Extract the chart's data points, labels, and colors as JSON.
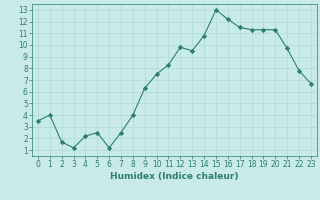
{
  "x": [
    0,
    1,
    2,
    3,
    4,
    5,
    6,
    7,
    8,
    9,
    10,
    11,
    12,
    13,
    14,
    15,
    16,
    17,
    18,
    19,
    20,
    21,
    22,
    23
  ],
  "y": [
    3.5,
    4.0,
    1.7,
    1.2,
    2.2,
    2.5,
    1.2,
    2.5,
    4.0,
    6.3,
    7.5,
    8.3,
    9.8,
    9.5,
    10.8,
    13.0,
    12.2,
    11.5,
    11.3,
    11.3,
    11.3,
    9.7,
    7.8,
    6.7
  ],
  "line_color": "#2e7d6e",
  "marker": "D",
  "marker_size": 2.2,
  "bg_color": "#c8ebe8",
  "grid_color": "#afd9d4",
  "xlabel": "Humidex (Indice chaleur)",
  "xlim": [
    -0.5,
    23.5
  ],
  "ylim": [
    0.5,
    13.5
  ],
  "yticks": [
    1,
    2,
    3,
    4,
    5,
    6,
    7,
    8,
    9,
    10,
    11,
    12,
    13
  ],
  "xticks": [
    0,
    1,
    2,
    3,
    4,
    5,
    6,
    7,
    8,
    9,
    10,
    11,
    12,
    13,
    14,
    15,
    16,
    17,
    18,
    19,
    20,
    21,
    22,
    23
  ],
  "tick_color": "#2e7d6e",
  "label_fontsize": 5.5,
  "xlabel_fontsize": 6.5
}
